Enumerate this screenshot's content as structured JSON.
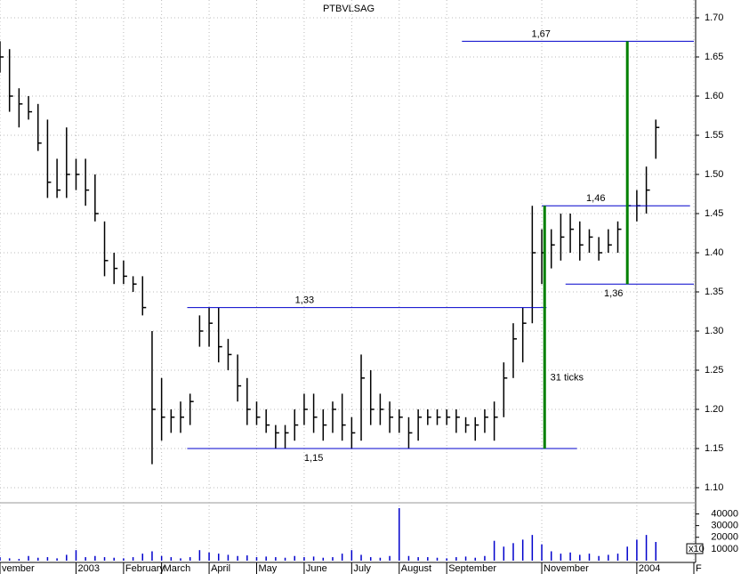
{
  "chart_data": {
    "type": "hlc",
    "title": "PTBVLSAG",
    "x": [
      0,
      1,
      2,
      3,
      4,
      5,
      6,
      7,
      8,
      9,
      10,
      11,
      12,
      13,
      14,
      15,
      16,
      17,
      18,
      19,
      20,
      21,
      22,
      23,
      24,
      25,
      26,
      27,
      28,
      29,
      30,
      31,
      32,
      33,
      34,
      35,
      36,
      37,
      38,
      39,
      40,
      41,
      42,
      43,
      44,
      45,
      46,
      47,
      48,
      49,
      50,
      51,
      52,
      53,
      54,
      55,
      56,
      57,
      58,
      59,
      60,
      61,
      62,
      63,
      64,
      65,
      66,
      67,
      68,
      69
    ],
    "high": [
      1.67,
      1.66,
      1.61,
      1.6,
      1.59,
      1.57,
      1.52,
      1.56,
      1.52,
      1.52,
      1.5,
      1.44,
      1.4,
      1.39,
      1.37,
      1.37,
      1.3,
      1.24,
      1.2,
      1.21,
      1.22,
      1.32,
      1.33,
      1.33,
      1.29,
      1.27,
      1.24,
      1.21,
      1.2,
      1.18,
      1.18,
      1.2,
      1.22,
      1.22,
      1.2,
      1.21,
      1.22,
      1.19,
      1.27,
      1.25,
      1.22,
      1.21,
      1.2,
      1.19,
      1.2,
      1.2,
      1.2,
      1.2,
      1.2,
      1.19,
      1.19,
      1.2,
      1.21,
      1.26,
      1.31,
      1.33,
      1.46,
      1.43,
      1.43,
      1.45,
      1.45,
      1.44,
      1.43,
      1.42,
      1.43,
      1.44,
      1.49,
      1.48,
      1.51,
      1.57
    ],
    "low": [
      1.63,
      1.58,
      1.56,
      1.57,
      1.53,
      1.47,
      1.47,
      1.47,
      1.48,
      1.46,
      1.44,
      1.37,
      1.36,
      1.36,
      1.35,
      1.32,
      1.13,
      1.16,
      1.17,
      1.17,
      1.18,
      1.28,
      1.28,
      1.26,
      1.25,
      1.21,
      1.18,
      1.18,
      1.17,
      1.15,
      1.15,
      1.16,
      1.18,
      1.17,
      1.16,
      1.17,
      1.16,
      1.15,
      1.16,
      1.18,
      1.18,
      1.17,
      1.17,
      1.15,
      1.16,
      1.18,
      1.18,
      1.18,
      1.17,
      1.17,
      1.16,
      1.17,
      1.16,
      1.19,
      1.24,
      1.26,
      1.31,
      1.36,
      1.38,
      1.39,
      1.4,
      1.39,
      1.4,
      1.39,
      1.4,
      1.4,
      1.43,
      1.44,
      1.45,
      1.52
    ],
    "close": [
      1.65,
      1.6,
      1.59,
      1.58,
      1.54,
      1.49,
      1.48,
      1.5,
      1.5,
      1.48,
      1.45,
      1.39,
      1.38,
      1.37,
      1.36,
      1.33,
      1.2,
      1.19,
      1.19,
      1.19,
      1.21,
      1.3,
      1.31,
      1.28,
      1.27,
      1.23,
      1.2,
      1.19,
      1.18,
      1.17,
      1.17,
      1.18,
      1.2,
      1.19,
      1.18,
      1.2,
      1.18,
      1.17,
      1.24,
      1.2,
      1.2,
      1.19,
      1.19,
      1.17,
      1.19,
      1.19,
      1.19,
      1.19,
      1.19,
      1.18,
      1.18,
      1.19,
      1.19,
      1.24,
      1.29,
      1.31,
      1.4,
      1.4,
      1.41,
      1.42,
      1.43,
      1.41,
      1.42,
      1.4,
      1.41,
      1.43,
      1.46,
      1.46,
      1.48,
      1.56
    ],
    "volume": [
      3000,
      2000,
      1500,
      4000,
      2500,
      3000,
      2000,
      5000,
      9000,
      3000,
      4000,
      3000,
      2500,
      2000,
      3000,
      6000,
      8000,
      4000,
      3000,
      2000,
      3000,
      9000,
      7000,
      6000,
      5000,
      4000,
      4500,
      3000,
      3500,
      3000,
      2500,
      4000,
      3000,
      3500,
      2500,
      3000,
      6000,
      9000,
      5000,
      3000,
      2500,
      4000,
      45000,
      4000,
      3000,
      3000,
      2500,
      2000,
      3000,
      3500,
      2500,
      4000,
      17000,
      12000,
      15000,
      18000,
      22000,
      14000,
      8000,
      6000,
      7000,
      5000,
      6000,
      4000,
      5000,
      6000,
      12000,
      18000,
      22000,
      16000
    ],
    "price_color": "#000000",
    "volume_color": "#0000cc",
    "xlim": [
      0,
      73
    ],
    "xticks": [
      {
        "value": 0,
        "label": "vember"
      },
      {
        "value": 8,
        "label": "2003"
      },
      {
        "value": 13,
        "label": "February"
      },
      {
        "value": 17,
        "label": "March"
      },
      {
        "value": 22,
        "label": "April"
      },
      {
        "value": 27,
        "label": "May"
      },
      {
        "value": 32,
        "label": "June"
      },
      {
        "value": 37,
        "label": "July"
      },
      {
        "value": 42,
        "label": "August"
      },
      {
        "value": 47,
        "label": "September"
      },
      {
        "value": 57,
        "label": "November"
      },
      {
        "value": 67,
        "label": "2004"
      },
      {
        "value": 73,
        "label": "F"
      }
    ],
    "ylim": [
      1.1,
      1.7
    ],
    "yticks": [
      {
        "value": 1.1,
        "label": "1.10"
      },
      1.15,
      {
        "value": 1.2,
        "label": "1.20"
      },
      1.25,
      {
        "value": 1.3,
        "label": "1.30"
      },
      1.35,
      {
        "value": 1.4,
        "label": "1.40"
      },
      1.45,
      {
        "value": 1.5,
        "label": "1.50"
      },
      1.55,
      {
        "value": 1.6,
        "label": "1.60"
      },
      1.65,
      {
        "value": 1.7,
        "label": "1.70"
      }
    ],
    "volume_lim": [
      0,
      48000
    ],
    "volume_ticks": [
      10000,
      20000,
      30000,
      40000
    ],
    "volume_unit": "x10",
    "grid": true,
    "levels": [
      {
        "value": 1.67,
        "label": "1,67",
        "x": [
          48.6,
          73
        ],
        "label_position": "above"
      },
      {
        "value": 1.33,
        "label": "1,33",
        "x": [
          19.7,
          57.5
        ],
        "label_position": "above"
      },
      {
        "value": 1.15,
        "label": "1,15",
        "x": [
          19.7,
          60.7
        ],
        "label_position": "below"
      },
      {
        "value": 1.46,
        "label": "1,46",
        "x": [
          57,
          72.6
        ],
        "label_position": "above"
      },
      {
        "value": 1.36,
        "label": "1,36",
        "x": [
          59.5,
          73
        ],
        "label_position": "below"
      }
    ],
    "level_color": "#0000cc",
    "measures": [
      {
        "x": 57.3,
        "from": 1.15,
        "to": 1.46
      },
      {
        "x": 66,
        "from": 1.36,
        "to": 1.67
      }
    ],
    "measure_color": "#008000",
    "notes": [
      {
        "text": "31 ticks",
        "x": 57.9,
        "y": 1.24
      }
    ]
  }
}
